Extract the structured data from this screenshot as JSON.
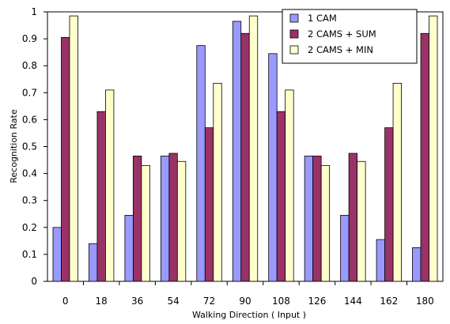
{
  "chart_data": {
    "type": "bar",
    "xlabel": "Walking Direction ( Input )",
    "ylabel": "Recognition Rate",
    "ylim": [
      0,
      1
    ],
    "yticks": [
      "0",
      "0.1",
      "0.2",
      "0.3",
      "0.4",
      "0.5",
      "0.6",
      "0.7",
      "0.8",
      "0.9",
      "1"
    ],
    "categories": [
      "0",
      "18",
      "36",
      "54",
      "72",
      "90",
      "108",
      "126",
      "144",
      "162",
      "180"
    ],
    "series": [
      {
        "name": "1 CAM",
        "color": "#9999ff",
        "values": [
          0.2,
          0.14,
          0.245,
          0.465,
          0.875,
          0.965,
          0.845,
          0.465,
          0.245,
          0.155,
          0.125
        ]
      },
      {
        "name": "2 CAMS + SUM",
        "color": "#993366",
        "values": [
          0.905,
          0.63,
          0.465,
          0.475,
          0.57,
          0.92,
          0.63,
          0.465,
          0.475,
          0.57,
          0.92
        ]
      },
      {
        "name": "2 CAMS + MIN",
        "color": "#ffffcc",
        "values": [
          0.985,
          0.71,
          0.43,
          0.445,
          0.735,
          0.985,
          0.71,
          0.43,
          0.445,
          0.735,
          0.985
        ]
      }
    ],
    "grid": false,
    "legend_position": "top-right"
  }
}
